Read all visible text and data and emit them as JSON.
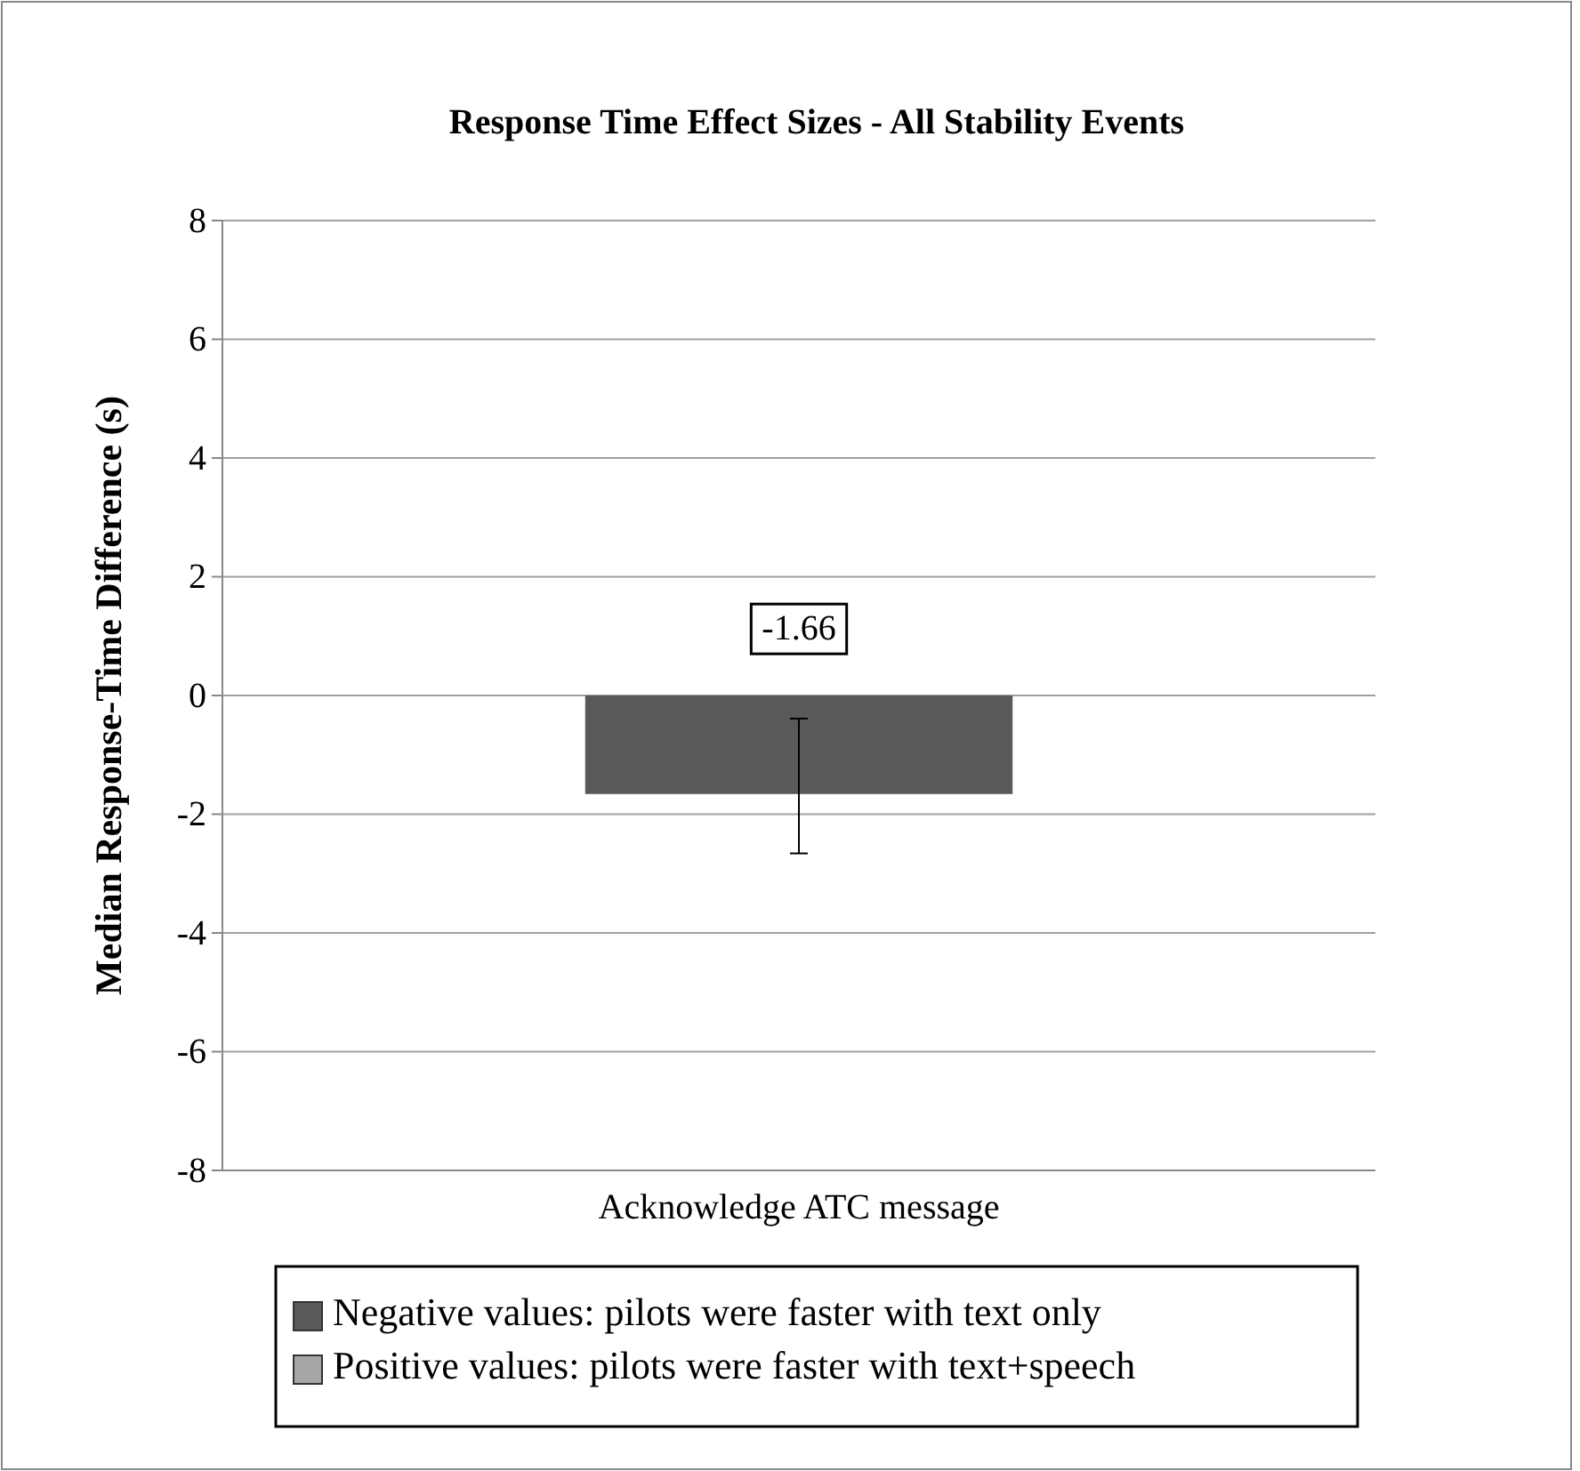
{
  "chart_data": {
    "type": "bar",
    "title": "Response Time Effect Sizes - All Stability Events",
    "ylabel": "Median Response-Time Difference (s)",
    "categories": [
      "Acknowledge ATC message"
    ],
    "series": [
      {
        "name": "Negative values: pilots were faster with text only",
        "color": "#595959",
        "values": [
          -1.66
        ],
        "errors": [
          [
            -2.66,
            -0.39
          ]
        ]
      },
      {
        "name": "Positive values: pilots were faster with text+speech",
        "color": "#a6a6a6",
        "values": [
          null
        ]
      }
    ],
    "stacked": true,
    "data_labels": true,
    "ylim": [
      -8,
      8
    ],
    "yticks": [
      -8,
      -6,
      -4,
      -2,
      0,
      2,
      4,
      6,
      8
    ],
    "grid": "y",
    "legend": "bottom"
  }
}
